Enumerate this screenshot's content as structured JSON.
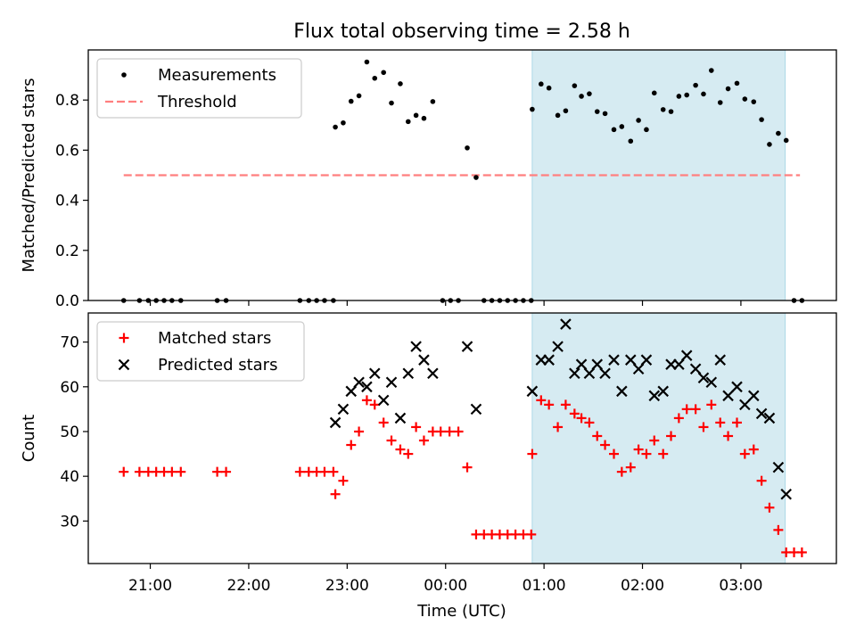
{
  "figure": {
    "title": "Flux total observing time = 2.58 h",
    "xlabel": "Time (UTC)",
    "x_ticks": [
      "21:00",
      "22:00",
      "23:00",
      "00:00",
      "01:00",
      "02:00",
      "03:00"
    ]
  },
  "chart_data": [
    {
      "type": "scatter",
      "title": "Flux total observing time = 2.58 h",
      "xlabel": "",
      "ylabel": "Matched/Predicted stars",
      "x_unit": "hours since 21:00 UTC",
      "xlim": [
        -0.63,
        6.97
      ],
      "ylim": [
        0,
        1.0
      ],
      "y_ticks": [
        "0.0",
        "0.2",
        "0.4",
        "0.6",
        "0.8"
      ],
      "highlight_span": {
        "x_start": 3.88,
        "x_end": 6.45,
        "color": "#add8e6"
      },
      "legend": {
        "placement": "top-left",
        "entries": [
          "Measurements",
          "Threshold"
        ]
      },
      "threshold": {
        "name": "Threshold",
        "value": 0.5,
        "x_range": [
          -0.27,
          6.6
        ],
        "color": "#ff7f7f"
      },
      "series": [
        {
          "name": "Measurements",
          "color": "#000000",
          "points": [
            [
              -0.27,
              0.0
            ],
            [
              -0.11,
              0.0
            ],
            [
              -0.02,
              0.0
            ],
            [
              0.06,
              0.0
            ],
            [
              0.14,
              0.0
            ],
            [
              0.22,
              0.0
            ],
            [
              0.31,
              0.0
            ],
            [
              0.68,
              0.0
            ],
            [
              0.77,
              0.0
            ],
            [
              1.52,
              0.0
            ],
            [
              1.61,
              0.0
            ],
            [
              1.69,
              0.0
            ],
            [
              1.77,
              0.0
            ],
            [
              1.86,
              0.0
            ],
            [
              1.88,
              0.692
            ],
            [
              1.96,
              0.709
            ],
            [
              2.04,
              0.795
            ],
            [
              2.12,
              0.817
            ],
            [
              2.2,
              0.952
            ],
            [
              2.28,
              0.887
            ],
            [
              2.37,
              0.91
            ],
            [
              2.45,
              0.788
            ],
            [
              2.54,
              0.865
            ],
            [
              2.62,
              0.714
            ],
            [
              2.7,
              0.739
            ],
            [
              2.78,
              0.727
            ],
            [
              2.87,
              0.794
            ],
            [
              2.97,
              0.0
            ],
            [
              3.05,
              0.0
            ],
            [
              3.13,
              0.0
            ],
            [
              3.22,
              0.609
            ],
            [
              3.31,
              0.491
            ],
            [
              3.39,
              0.0
            ],
            [
              3.47,
              0.0
            ],
            [
              3.55,
              0.0
            ],
            [
              3.63,
              0.0
            ],
            [
              3.71,
              0.0
            ],
            [
              3.79,
              0.0
            ],
            [
              3.87,
              0.0
            ],
            [
              3.88,
              0.763
            ],
            [
              3.97,
              0.864
            ],
            [
              4.05,
              0.848
            ],
            [
              4.14,
              0.739
            ],
            [
              4.22,
              0.757
            ],
            [
              4.31,
              0.857
            ],
            [
              4.38,
              0.815
            ],
            [
              4.46,
              0.825
            ],
            [
              4.54,
              0.754
            ],
            [
              4.62,
              0.746
            ],
            [
              4.71,
              0.682
            ],
            [
              4.79,
              0.694
            ],
            [
              4.88,
              0.636
            ],
            [
              4.96,
              0.719
            ],
            [
              5.04,
              0.682
            ],
            [
              5.12,
              0.828
            ],
            [
              5.21,
              0.762
            ],
            [
              5.29,
              0.754
            ],
            [
              5.37,
              0.815
            ],
            [
              5.45,
              0.82
            ],
            [
              5.54,
              0.859
            ],
            [
              5.62,
              0.824
            ],
            [
              5.7,
              0.918
            ],
            [
              5.79,
              0.79
            ],
            [
              5.87,
              0.845
            ],
            [
              5.96,
              0.867
            ],
            [
              6.04,
              0.804
            ],
            [
              6.13,
              0.793
            ],
            [
              6.21,
              0.722
            ],
            [
              6.29,
              0.623
            ],
            [
              6.38,
              0.667
            ],
            [
              6.46,
              0.639
            ],
            [
              6.54,
              0.0
            ],
            [
              6.62,
              0.0
            ]
          ]
        }
      ]
    },
    {
      "type": "scatter",
      "title": "",
      "xlabel": "Time (UTC)",
      "ylabel": "Count",
      "x_unit": "hours since 21:00 UTC",
      "xlim": [
        -0.63,
        6.97
      ],
      "ylim": [
        20.5,
        76.5
      ],
      "y_ticks": [
        "30",
        "40",
        "50",
        "60",
        "70"
      ],
      "highlight_span": {
        "x_start": 3.88,
        "x_end": 6.45,
        "color": "#add8e6"
      },
      "legend": {
        "placement": "top-left",
        "entries": [
          "Matched stars",
          "Predicted stars"
        ]
      },
      "series": [
        {
          "name": "Matched stars",
          "marker": "plus",
          "color": "#ff0000",
          "points": [
            [
              -0.27,
              41
            ],
            [
              -0.11,
              41
            ],
            [
              -0.02,
              41
            ],
            [
              0.06,
              41
            ],
            [
              0.14,
              41
            ],
            [
              0.22,
              41
            ],
            [
              0.31,
              41
            ],
            [
              0.68,
              41
            ],
            [
              0.77,
              41
            ],
            [
              1.52,
              41
            ],
            [
              1.61,
              41
            ],
            [
              1.69,
              41
            ],
            [
              1.77,
              41
            ],
            [
              1.86,
              41
            ],
            [
              1.88,
              36
            ],
            [
              1.96,
              39
            ],
            [
              2.04,
              47
            ],
            [
              2.12,
              50
            ],
            [
              2.2,
              57
            ],
            [
              2.28,
              56
            ],
            [
              2.37,
              52
            ],
            [
              2.45,
              48
            ],
            [
              2.54,
              46
            ],
            [
              2.62,
              45
            ],
            [
              2.7,
              51
            ],
            [
              2.78,
              48
            ],
            [
              2.87,
              50
            ],
            [
              2.95,
              50
            ],
            [
              3.04,
              50
            ],
            [
              3.13,
              50
            ],
            [
              3.22,
              42
            ],
            [
              3.31,
              27
            ],
            [
              3.39,
              27
            ],
            [
              3.47,
              27
            ],
            [
              3.55,
              27
            ],
            [
              3.63,
              27
            ],
            [
              3.71,
              27
            ],
            [
              3.79,
              27
            ],
            [
              3.87,
              27
            ],
            [
              3.88,
              45
            ],
            [
              3.97,
              57
            ],
            [
              4.05,
              56
            ],
            [
              4.14,
              51
            ],
            [
              4.22,
              56
            ],
            [
              4.31,
              54
            ],
            [
              4.38,
              53
            ],
            [
              4.46,
              52
            ],
            [
              4.54,
              49
            ],
            [
              4.62,
              47
            ],
            [
              4.71,
              45
            ],
            [
              4.79,
              41
            ],
            [
              4.88,
              42
            ],
            [
              4.96,
              46
            ],
            [
              5.04,
              45
            ],
            [
              5.12,
              48
            ],
            [
              5.21,
              45
            ],
            [
              5.29,
              49
            ],
            [
              5.37,
              53
            ],
            [
              5.45,
              55
            ],
            [
              5.54,
              55
            ],
            [
              5.62,
              51
            ],
            [
              5.7,
              56
            ],
            [
              5.79,
              52
            ],
            [
              5.87,
              49
            ],
            [
              5.96,
              52
            ],
            [
              6.04,
              45
            ],
            [
              6.13,
              46
            ],
            [
              6.21,
              39
            ],
            [
              6.29,
              33
            ],
            [
              6.38,
              28
            ],
            [
              6.46,
              23
            ],
            [
              6.54,
              23
            ],
            [
              6.62,
              23
            ]
          ]
        },
        {
          "name": "Predicted stars",
          "marker": "x",
          "color": "#000000",
          "points": [
            [
              1.88,
              52
            ],
            [
              1.96,
              55
            ],
            [
              2.04,
              59
            ],
            [
              2.12,
              61
            ],
            [
              2.2,
              60
            ],
            [
              2.28,
              63
            ],
            [
              2.37,
              57
            ],
            [
              2.45,
              61
            ],
            [
              2.54,
              53
            ],
            [
              2.62,
              63
            ],
            [
              2.7,
              69
            ],
            [
              2.78,
              66
            ],
            [
              2.87,
              63
            ],
            [
              3.22,
              69
            ],
            [
              3.31,
              55
            ],
            [
              3.88,
              59
            ],
            [
              3.97,
              66
            ],
            [
              4.05,
              66
            ],
            [
              4.14,
              69
            ],
            [
              4.22,
              74
            ],
            [
              4.31,
              63
            ],
            [
              4.38,
              65
            ],
            [
              4.46,
              63
            ],
            [
              4.54,
              65
            ],
            [
              4.62,
              63
            ],
            [
              4.71,
              66
            ],
            [
              4.79,
              59
            ],
            [
              4.88,
              66
            ],
            [
              4.96,
              64
            ],
            [
              5.04,
              66
            ],
            [
              5.12,
              58
            ],
            [
              5.21,
              59
            ],
            [
              5.29,
              65
            ],
            [
              5.37,
              65
            ],
            [
              5.45,
              67
            ],
            [
              5.54,
              64
            ],
            [
              5.62,
              62
            ],
            [
              5.7,
              61
            ],
            [
              5.79,
              66
            ],
            [
              5.87,
              58
            ],
            [
              5.96,
              60
            ],
            [
              6.04,
              56
            ],
            [
              6.13,
              58
            ],
            [
              6.21,
              54
            ],
            [
              6.29,
              53
            ],
            [
              6.38,
              42
            ],
            [
              6.46,
              36
            ]
          ]
        }
      ]
    }
  ]
}
